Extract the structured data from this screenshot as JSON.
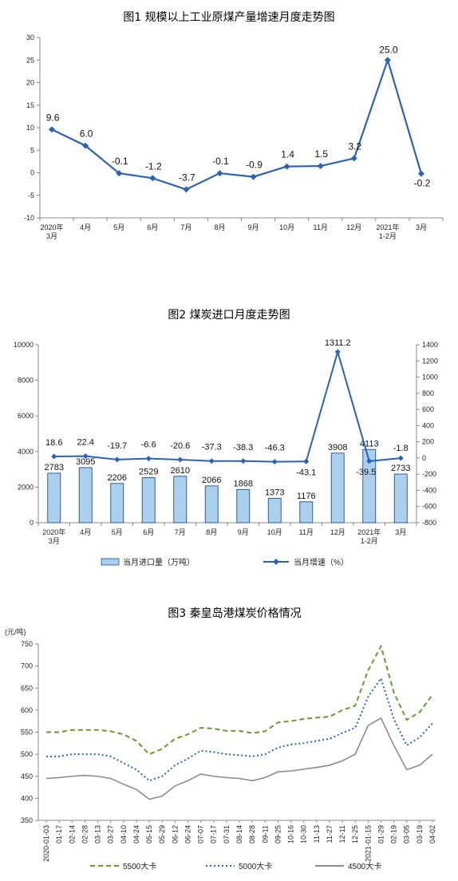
{
  "chart_data": [
    {
      "type": "line",
      "title": "图1  规模以上工业原煤产量增速月度走势图",
      "categories": [
        "2020年\n3月",
        "4月",
        "5月",
        "6月",
        "7月",
        "8月",
        "9月",
        "10月",
        "11月",
        "12月",
        "2021年\n1-2月",
        "3月"
      ],
      "values": [
        9.6,
        6.0,
        -0.1,
        -1.2,
        -3.7,
        -0.1,
        -0.9,
        1.4,
        1.5,
        3.2,
        25.0,
        -0.2
      ],
      "labels": [
        "9.6",
        "6.0",
        "-0.1",
        "-1.2",
        "-3.7",
        "-0.1",
        "-0.9",
        "1.4",
        "1.5",
        "3.2",
        "25.0",
        "-0.2"
      ],
      "yticks": [
        "30",
        "25",
        "20",
        "15",
        "10",
        "5",
        "0",
        "-5",
        "-10"
      ],
      "ylim": [
        -10,
        30
      ],
      "color": "#2a62b8"
    },
    {
      "type": "bar+line",
      "title": "图2  煤炭进口月度走势图",
      "categories": [
        "2020年\n3月",
        "4月",
        "5月",
        "6月",
        "7月",
        "8月",
        "9月",
        "10月",
        "11月",
        "12月",
        "2021年\n1-2月",
        "3月"
      ],
      "series": [
        {
          "name": "当月进口量（万吨）",
          "type": "bar",
          "axis": "left",
          "values": [
            2783,
            3095,
            2206,
            2529,
            2610,
            2066,
            1868,
            1373,
            1176,
            3908,
            4113,
            2733
          ],
          "labels": [
            "2783",
            "3095",
            "2206",
            "2529",
            "2610",
            "2066",
            "1868",
            "1373",
            "1176",
            "3908",
            "4113",
            "2733"
          ]
        },
        {
          "name": "当月增速（%）",
          "type": "line",
          "axis": "right",
          "values": [
            18.6,
            22.4,
            -19.7,
            -6.6,
            -20.6,
            -37.3,
            -38.3,
            -46.3,
            -43.1,
            1311.2,
            -39.5,
            -1.8
          ],
          "labels": [
            "18.6",
            "22.4",
            "-19.7",
            "-6.6",
            "-20.6",
            "-37.3",
            "-38.3",
            "-46.3",
            "-43.1",
            "1311.2",
            "-39.5",
            "-1.8"
          ]
        }
      ],
      "left_yticks": [
        "10000",
        "8000",
        "6000",
        "4000",
        "2000",
        "0"
      ],
      "right_yticks": [
        "1400",
        "1200",
        "1000",
        "800",
        "600",
        "400",
        "200",
        "0",
        "-200",
        "-400",
        "-600",
        "-800"
      ],
      "left_ylim": [
        0,
        10000
      ],
      "right_ylim": [
        -800,
        1400
      ],
      "bar_fill": "#aad0ee",
      "bar_edge": "#1f4f8a",
      "line_color": "#2a62b8"
    },
    {
      "type": "line",
      "title": "图3  秦皇岛港煤炭价格情况",
      "ylabel": "(元/吨)",
      "yticks": [
        "750",
        "700",
        "650",
        "600",
        "550",
        "500",
        "450",
        "400",
        "350"
      ],
      "ylim": [
        350,
        750
      ],
      "categories": [
        "2020-01-03",
        "01-17",
        "02-14",
        "02-28",
        "03-13",
        "03-27",
        "04-10",
        "04-24",
        "05-15",
        "05-29",
        "06-12",
        "06-24",
        "07-07",
        "07-17",
        "07-31",
        "08-14",
        "08-28",
        "09-11",
        "09-25",
        "10-16",
        "10-30",
        "11-13",
        "11-27",
        "12-11",
        "12-25",
        "2021-01-15",
        "01-29",
        "02-19",
        "03-05",
        "03-19",
        "04-02"
      ],
      "series": [
        {
          "name": "5500大卡",
          "color": "#6a9a2c",
          "dash": "dashed",
          "values": [
            550,
            550,
            555,
            555,
            555,
            552,
            545,
            530,
            500,
            512,
            535,
            545,
            560,
            558,
            553,
            553,
            548,
            552,
            572,
            575,
            580,
            583,
            585,
            600,
            610,
            690,
            745,
            640,
            578,
            595,
            635
          ]
        },
        {
          "name": "5000大卡",
          "color": "#2a62b8",
          "dash": "dotted",
          "values": [
            495,
            495,
            500,
            500,
            500,
            495,
            480,
            465,
            440,
            450,
            475,
            490,
            508,
            505,
            500,
            498,
            495,
            500,
            515,
            522,
            525,
            530,
            535,
            548,
            560,
            630,
            672,
            580,
            520,
            538,
            570
          ]
        },
        {
          "name": "4500大卡",
          "color": "#8c8c8c",
          "dash": "solid",
          "values": [
            445,
            447,
            450,
            452,
            450,
            445,
            432,
            420,
            398,
            405,
            428,
            440,
            455,
            450,
            447,
            445,
            440,
            447,
            460,
            462,
            466,
            470,
            475,
            485,
            500,
            565,
            582,
            520,
            465,
            475,
            500
          ]
        }
      ]
    }
  ]
}
